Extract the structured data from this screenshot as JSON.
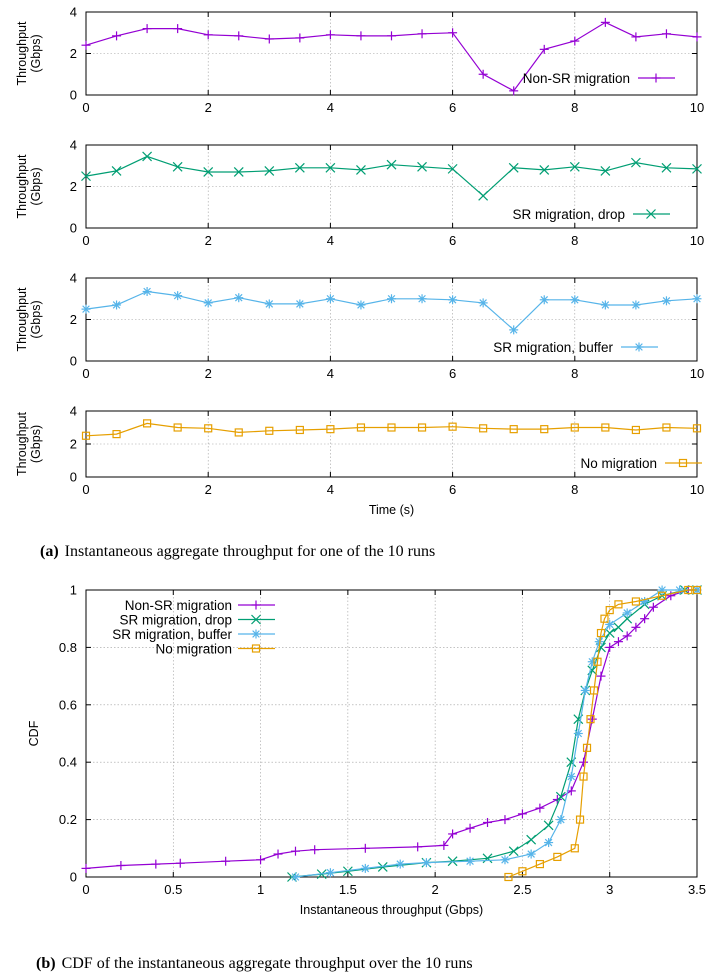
{
  "colors": {
    "non_sr": "#9400d3",
    "sr_drop": "#009e73",
    "sr_buffer": "#56b4e9",
    "no_mig": "#e69f00",
    "grid": "#a0a0a0"
  },
  "caption_a": {
    "label": "(a)",
    "text": "Instantaneous aggregate throughput for one of the 10 runs"
  },
  "caption_b": {
    "label": "(b)",
    "text": "CDF of the instantaneous aggregate throughput over the 10 runs"
  },
  "chart_data": [
    {
      "type": "line",
      "ylabel": [
        "Throughput",
        "(Gbps)"
      ],
      "xlabel": "",
      "xlim": [
        0,
        10
      ],
      "ylim": [
        0,
        4
      ],
      "x_ticks": [
        "0",
        "2",
        "4",
        "6",
        "8",
        "10"
      ],
      "y_ticks": [
        "0",
        "2",
        "4"
      ],
      "grid": true,
      "legend_position": "right",
      "marker": "plus",
      "color_key": "non_sr",
      "series": [
        {
          "name": "Non-SR migration",
          "x": [
            0,
            0.5,
            1,
            1.5,
            2,
            2.5,
            3,
            3.5,
            4,
            4.5,
            5,
            5.5,
            6,
            6.5,
            7,
            7.5,
            8,
            8.5,
            9,
            9.5,
            10
          ],
          "y": [
            2.4,
            2.85,
            3.2,
            3.2,
            2.9,
            2.85,
            2.7,
            2.75,
            2.9,
            2.85,
            2.85,
            2.95,
            3.0,
            1.0,
            0.2,
            2.2,
            2.6,
            3.5,
            2.8,
            2.95,
            2.8
          ]
        }
      ]
    },
    {
      "type": "line",
      "ylabel": [
        "Throughput",
        "(Gbps)"
      ],
      "xlabel": "",
      "xlim": [
        0,
        10
      ],
      "ylim": [
        0,
        4
      ],
      "x_ticks": [
        "0",
        "2",
        "4",
        "6",
        "8",
        "10"
      ],
      "y_ticks": [
        "0",
        "2",
        "4"
      ],
      "grid": true,
      "legend_position": "bottom-right",
      "marker": "x",
      "color_key": "sr_drop",
      "series": [
        {
          "name": "SR migration, drop",
          "x": [
            0,
            0.5,
            1,
            1.5,
            2,
            2.5,
            3,
            3.5,
            4,
            4.5,
            5,
            5.5,
            6,
            6.5,
            7,
            7.5,
            8,
            8.5,
            9,
            9.5,
            10
          ],
          "y": [
            2.5,
            2.75,
            3.45,
            2.95,
            2.7,
            2.7,
            2.75,
            2.9,
            2.9,
            2.8,
            3.05,
            2.95,
            2.85,
            1.55,
            2.9,
            2.8,
            2.95,
            2.75,
            3.15,
            2.9,
            2.85
          ]
        }
      ]
    },
    {
      "type": "line",
      "ylabel": [
        "Throughput",
        "(Gbps)"
      ],
      "xlabel": "",
      "xlim": [
        0,
        10
      ],
      "ylim": [
        0,
        4
      ],
      "x_ticks": [
        "0",
        "2",
        "4",
        "6",
        "8",
        "10"
      ],
      "y_ticks": [
        "0",
        "2",
        "4"
      ],
      "grid": true,
      "legend_position": "bottom-right",
      "marker": "star",
      "color_key": "sr_buffer",
      "series": [
        {
          "name": "SR migration, buffer",
          "x": [
            0,
            0.5,
            1,
            1.5,
            2,
            2.5,
            3,
            3.5,
            4,
            4.5,
            5,
            5.5,
            6,
            6.5,
            7,
            7.5,
            8,
            8.5,
            9,
            9.5,
            10
          ],
          "y": [
            2.5,
            2.7,
            3.35,
            3.15,
            2.8,
            3.05,
            2.75,
            2.75,
            3.0,
            2.7,
            3.0,
            3.0,
            2.95,
            2.8,
            1.5,
            2.95,
            2.95,
            2.7,
            2.7,
            2.9,
            3.0
          ]
        }
      ]
    },
    {
      "type": "line",
      "ylabel": [
        "Throughput",
        "(Gbps)"
      ],
      "xlabel": "Time (s)",
      "xlim": [
        0,
        10
      ],
      "ylim": [
        0,
        4
      ],
      "x_ticks": [
        "0",
        "2",
        "4",
        "6",
        "8",
        "10"
      ],
      "y_ticks": [
        "0",
        "2",
        "4"
      ],
      "grid": true,
      "legend_position": "bottom-right",
      "marker": "square",
      "color_key": "no_mig",
      "series": [
        {
          "name": "No migration",
          "x": [
            0,
            0.5,
            1,
            1.5,
            2,
            2.5,
            3,
            3.5,
            4,
            4.5,
            5,
            5.5,
            6,
            6.5,
            7,
            7.5,
            8,
            8.5,
            9,
            9.5,
            10
          ],
          "y": [
            2.5,
            2.6,
            3.25,
            3.0,
            2.95,
            2.7,
            2.8,
            2.85,
            2.9,
            3.0,
            3.0,
            3.0,
            3.05,
            2.95,
            2.9,
            2.9,
            3.0,
            3.0,
            2.85,
            3.0,
            2.95
          ]
        }
      ]
    },
    {
      "type": "line",
      "xlabel": "Instantaneous throughput (Gbps)",
      "ylabel": [
        "CDF"
      ],
      "xlim": [
        0,
        3.5
      ],
      "ylim": [
        0,
        1
      ],
      "x_ticks": [
        "0",
        "0.5",
        "1",
        "1.5",
        "2",
        "2.5",
        "3",
        "3.5"
      ],
      "y_ticks": [
        "0",
        "0.2",
        "0.4",
        "0.6",
        "0.8",
        "1"
      ],
      "grid": true,
      "legend_position": "top-left",
      "series": [
        {
          "name": "Non-SR migration",
          "color_key": "non_sr",
          "marker": "plus",
          "x": [
            0,
            0.2,
            0.4,
            0.54,
            0.8,
            1.0,
            1.1,
            1.2,
            1.31,
            1.6,
            1.9,
            2.05,
            2.1,
            2.2,
            2.3,
            2.4,
            2.5,
            2.6,
            2.7,
            2.78,
            2.85,
            2.9,
            2.95,
            3.0,
            3.05,
            3.1,
            3.15,
            3.2,
            3.25,
            3.35,
            3.45,
            3.5
          ],
          "y": [
            0.03,
            0.04,
            0.045,
            0.048,
            0.055,
            0.06,
            0.08,
            0.09,
            0.095,
            0.1,
            0.105,
            0.11,
            0.15,
            0.17,
            0.19,
            0.2,
            0.22,
            0.24,
            0.27,
            0.3,
            0.4,
            0.55,
            0.7,
            0.8,
            0.82,
            0.84,
            0.87,
            0.9,
            0.94,
            0.98,
            1.0,
            1.0
          ]
        },
        {
          "name": "SR migration, drop",
          "color_key": "sr_drop",
          "marker": "x",
          "x": [
            1.18,
            1.35,
            1.5,
            1.7,
            1.95,
            2.1,
            2.3,
            2.45,
            2.55,
            2.65,
            2.72,
            2.78,
            2.82,
            2.86,
            2.9,
            2.95,
            3.0,
            3.05,
            3.1,
            3.2,
            3.3,
            3.43,
            3.5
          ],
          "y": [
            0.0,
            0.01,
            0.02,
            0.035,
            0.05,
            0.055,
            0.065,
            0.09,
            0.13,
            0.18,
            0.28,
            0.4,
            0.55,
            0.65,
            0.72,
            0.8,
            0.85,
            0.87,
            0.9,
            0.95,
            0.98,
            1.0,
            1.0
          ]
        },
        {
          "name": "SR migration, buffer",
          "color_key": "sr_buffer",
          "marker": "star",
          "x": [
            1.2,
            1.4,
            1.6,
            1.8,
            1.95,
            2.2,
            2.4,
            2.55,
            2.65,
            2.72,
            2.78,
            2.82,
            2.86,
            2.9,
            2.94,
            3.0,
            3.1,
            3.2,
            3.3,
            3.4,
            3.5
          ],
          "y": [
            0.0,
            0.015,
            0.03,
            0.045,
            0.05,
            0.055,
            0.06,
            0.08,
            0.12,
            0.2,
            0.35,
            0.5,
            0.65,
            0.75,
            0.82,
            0.88,
            0.92,
            0.96,
            1.0,
            1.0,
            1.0
          ]
        },
        {
          "name": "No migration",
          "color_key": "no_mig",
          "marker": "square",
          "x": [
            2.42,
            2.5,
            2.6,
            2.7,
            2.8,
            2.83,
            2.85,
            2.87,
            2.89,
            2.91,
            2.93,
            2.95,
            2.97,
            3.0,
            3.05,
            3.15,
            3.3,
            3.45,
            3.5
          ],
          "y": [
            0.0,
            0.02,
            0.045,
            0.07,
            0.1,
            0.2,
            0.35,
            0.45,
            0.55,
            0.65,
            0.75,
            0.85,
            0.9,
            0.93,
            0.95,
            0.96,
            0.98,
            1.0,
            1.0
          ]
        }
      ]
    }
  ]
}
